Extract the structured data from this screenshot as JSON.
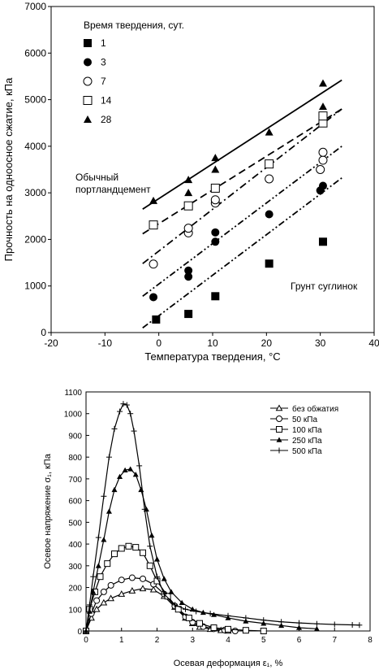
{
  "chart_data": [
    {
      "type": "scatter",
      "xlabel": "Температура твердения, °C",
      "ylabel": "Прочность на одноосное сжатие, кПа",
      "xlim": [
        -20,
        40
      ],
      "ylim": [
        0,
        7000
      ],
      "xticks": [
        -20,
        -10,
        0,
        10,
        20,
        30,
        40
      ],
      "yticks": [
        0,
        1000,
        2000,
        3000,
        4000,
        5000,
        6000,
        7000
      ],
      "legend_title": "Время твердения, сут.",
      "legend_position": "top-left",
      "annotations": [
        "Обычный портландцемент",
        "Грунт суглинок"
      ],
      "annotation_lines": [
        "Обычный",
        "портландцемент"
      ],
      "series": [
        {
          "name": "1",
          "marker": "filled-square",
          "line": "dash-dot-dot",
          "x": [
            -0.5,
            5.5,
            10.5,
            20.5,
            30.5
          ],
          "y": [
            280,
            400,
            780,
            1480,
            1950
          ],
          "fit": [
            [
              -3,
              100
            ],
            [
              34,
              3320
            ]
          ]
        },
        {
          "name": "3",
          "marker": "filled-circle",
          "line": "dash-dot-dot",
          "x": [
            -1,
            5.5,
            5.5,
            10.5,
            10.5,
            20.5,
            30,
            30.5
          ],
          "y": [
            760,
            1200,
            1330,
            1950,
            2150,
            2540,
            3050,
            3150
          ],
          "fit": [
            [
              -3,
              780
            ],
            [
              34,
              4000
            ]
          ]
        },
        {
          "name": "7",
          "marker": "open-circle",
          "line": "dash-dot",
          "x": [
            -1,
            5.5,
            5.5,
            10.5,
            10.5,
            20.5,
            30,
            30.5,
            30.5
          ],
          "y": [
            1470,
            2140,
            2240,
            2780,
            2850,
            3300,
            3500,
            3700,
            3870
          ],
          "fit": [
            [
              -3,
              1480
            ],
            [
              34,
              4800
            ]
          ]
        },
        {
          "name": "14",
          "marker": "open-square",
          "line": "dashed",
          "x": [
            -1,
            5.5,
            10.5,
            20.5,
            30.5,
            30.5
          ],
          "y": [
            2310,
            2720,
            3100,
            3620,
            4500,
            4650
          ],
          "fit": [
            [
              -3,
              2120
            ],
            [
              34,
              4800
            ]
          ]
        },
        {
          "name": "28",
          "marker": "filled-triangle",
          "line": "solid",
          "x": [
            -1,
            5.5,
            5.5,
            10.5,
            10.5,
            20.5,
            30.5,
            30.5
          ],
          "y": [
            2830,
            3000,
            3280,
            3500,
            3750,
            4300,
            4850,
            5350
          ],
          "fit": [
            [
              -3,
              2650
            ],
            [
              34,
              5420
            ]
          ]
        }
      ]
    },
    {
      "type": "line",
      "xlabel": "Осевая деформация ε₁, %",
      "ylabel": "Осевое напряжение σ₁, кПа",
      "xlim": [
        0,
        8
      ],
      "ylim": [
        0,
        1100
      ],
      "xticks": [
        0,
        1,
        2,
        3,
        4,
        5,
        6,
        7,
        8
      ],
      "yticks": [
        0,
        100,
        200,
        300,
        400,
        500,
        600,
        700,
        800,
        900,
        1000,
        1100
      ],
      "legend_position": "top-right",
      "series": [
        {
          "name": "без обжатия",
          "marker": "open-triangle",
          "x": [
            0,
            0.15,
            0.3,
            0.5,
            0.7,
            1.0,
            1.3,
            1.6,
            1.9,
            2.2,
            2.5,
            2.8,
            3.0,
            3.2,
            3.5,
            3.8,
            4.0
          ],
          "y": [
            0,
            60,
            100,
            130,
            150,
            170,
            185,
            195,
            190,
            160,
            110,
            60,
            35,
            18,
            8,
            3,
            0
          ]
        },
        {
          "name": "50 кПа",
          "marker": "open-circle",
          "x": [
            0,
            0.15,
            0.3,
            0.5,
            0.7,
            1.0,
            1.3,
            1.6,
            1.9,
            2.2,
            2.5,
            2.8,
            3.0,
            3.3,
            3.6,
            3.9,
            4.2
          ],
          "y": [
            0,
            80,
            140,
            180,
            210,
            235,
            245,
            240,
            215,
            170,
            115,
            65,
            40,
            20,
            10,
            4,
            0
          ]
        },
        {
          "name": "100 кПа",
          "marker": "open-square",
          "x": [
            0,
            0.1,
            0.25,
            0.4,
            0.6,
            0.8,
            1.0,
            1.2,
            1.4,
            1.6,
            1.8,
            2.0,
            2.3,
            2.6,
            2.9,
            3.2,
            3.6,
            4.0,
            4.5,
            5.0
          ],
          "y": [
            0,
            100,
            180,
            250,
            310,
            355,
            380,
            390,
            385,
            360,
            300,
            230,
            160,
            100,
            60,
            35,
            15,
            8,
            3,
            0
          ]
        },
        {
          "name": "250 кПа",
          "marker": "filled-triangle",
          "x": [
            0,
            0.1,
            0.2,
            0.35,
            0.5,
            0.65,
            0.8,
            0.95,
            1.1,
            1.25,
            1.4,
            1.55,
            1.7,
            1.85,
            2.0,
            2.2,
            2.4,
            2.7,
            3.0,
            3.3,
            3.6,
            4.0,
            4.5,
            5.0,
            5.5,
            6.0,
            6.5
          ],
          "y": [
            0,
            90,
            180,
            300,
            420,
            550,
            650,
            710,
            740,
            745,
            720,
            650,
            560,
            440,
            330,
            240,
            180,
            130,
            100,
            85,
            75,
            60,
            45,
            35,
            25,
            15,
            10
          ]
        },
        {
          "name": "500 кПа",
          "marker": "plus",
          "x": [
            0,
            0.1,
            0.2,
            0.35,
            0.5,
            0.65,
            0.8,
            0.95,
            1.05,
            1.15,
            1.25,
            1.35,
            1.5,
            1.65,
            1.8,
            2.0,
            2.2,
            2.5,
            2.8,
            3.1,
            3.5,
            4.0,
            4.5,
            5.0,
            5.5,
            6.0,
            6.5,
            7.0,
            7.5,
            7.7
          ],
          "y": [
            0,
            120,
            250,
            430,
            620,
            800,
            930,
            1010,
            1045,
            1040,
            1000,
            920,
            760,
            560,
            390,
            250,
            170,
            120,
            100,
            90,
            80,
            70,
            60,
            50,
            42,
            37,
            33,
            30,
            28,
            27
          ]
        }
      ]
    }
  ]
}
